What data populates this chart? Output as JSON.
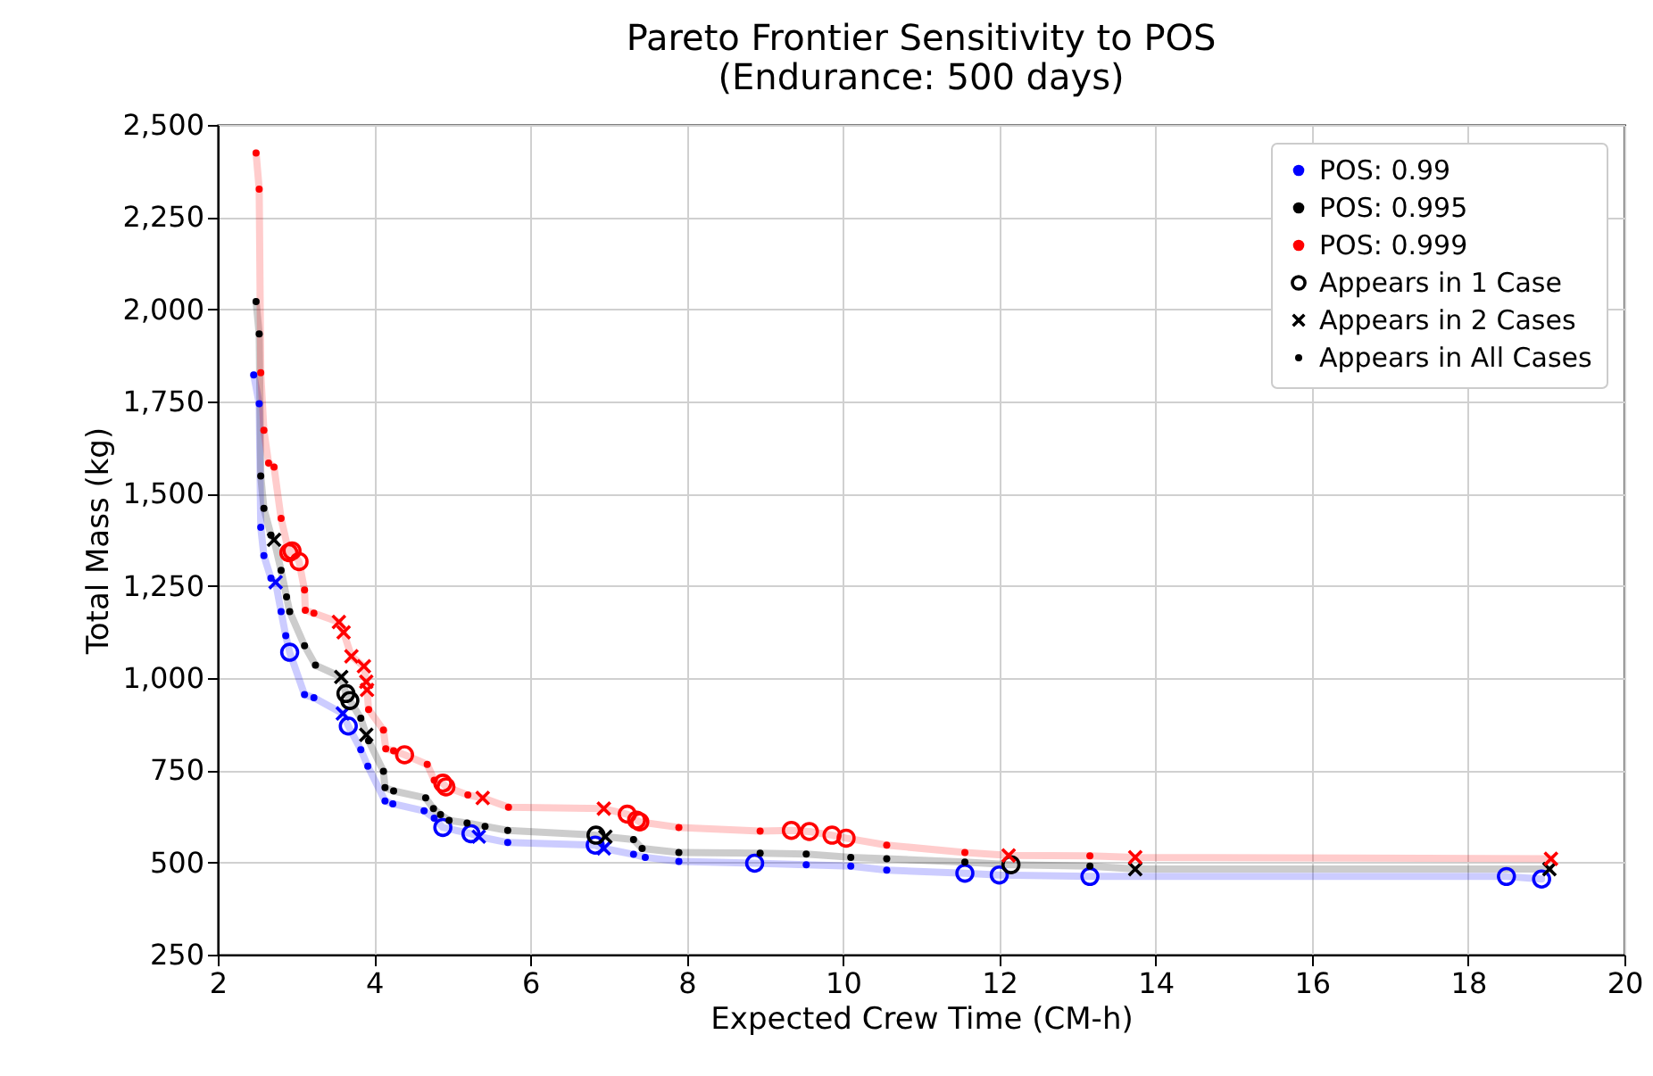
{
  "chart_data": {
    "type": "scatter",
    "title": "Pareto Frontier Sensitivity to POS",
    "subtitle": "(Endurance: 500 days)",
    "xlabel": "Expected Crew Time (CM-h)",
    "ylabel": "Total Mass (kg)",
    "xlim": [
      2,
      20
    ],
    "xticks": [
      2,
      4,
      6,
      8,
      10,
      12,
      14,
      16,
      18,
      20
    ],
    "ylim": [
      250,
      2500
    ],
    "yticks": [
      {
        "value": 250,
        "label": "250"
      },
      {
        "value": 500,
        "label": "500"
      },
      {
        "value": 750,
        "label": "750"
      },
      {
        "value": 1000,
        "label": "1,000"
      },
      {
        "value": 1250,
        "label": "1,250"
      },
      {
        "value": 1500,
        "label": "1,500"
      },
      {
        "value": 1750,
        "label": "1,750"
      },
      {
        "value": 2000,
        "label": "2,000"
      },
      {
        "value": 2250,
        "label": "2,250"
      },
      {
        "value": 2500,
        "label": "2,500"
      }
    ],
    "grid": true,
    "legend": "top right",
    "series": [
      {
        "name": "POS: 0.99",
        "type": "line",
        "color": "#0000ff",
        "x": [
          2.46,
          2.53,
          2.55,
          2.59,
          2.68,
          2.74,
          2.81,
          2.87,
          2.92,
          3.11,
          3.23,
          3.6,
          3.67,
          3.83,
          3.92,
          4.14,
          4.24,
          4.64,
          4.77,
          4.88,
          5.24,
          5.34,
          5.71,
          6.83,
          6.94,
          7.32,
          7.47,
          7.9,
          8.87,
          9.53,
          10.1,
          10.56,
          11.56,
          12.0,
          13.16,
          18.49,
          18.94
        ],
        "values": [
          1822,
          1744,
          1409,
          1332,
          1271,
          1260,
          1180,
          1115,
          1070,
          955,
          947,
          904,
          870,
          806,
          761,
          667,
          659,
          640,
          620,
          595,
          578,
          570,
          554,
          547,
          538,
          522,
          514,
          503,
          498,
          494,
          490,
          479,
          471,
          466,
          462,
          462,
          455
        ]
      },
      {
        "name": "POS: 0.995",
        "type": "line",
        "color": "#000000",
        "x": [
          2.49,
          2.53,
          2.55,
          2.59,
          2.68,
          2.72,
          2.81,
          2.88,
          2.92,
          3.11,
          3.25,
          3.58,
          3.64,
          3.69,
          3.83,
          3.9,
          3.93,
          4.12,
          4.14,
          4.25,
          4.66,
          4.76,
          4.85,
          4.96,
          5.19,
          5.42,
          5.71,
          6.84,
          6.96,
          7.32,
          7.43,
          7.9,
          8.94,
          9.53,
          10.1,
          10.56,
          11.56,
          12.15,
          13.16,
          13.74,
          19.04
        ],
        "values": [
          2021,
          1933,
          1548,
          1460,
          1388,
          1375,
          1292,
          1220,
          1180,
          1088,
          1035,
          1003,
          958,
          939,
          891,
          846,
          830,
          747,
          703,
          694,
          675,
          646,
          630,
          614,
          607,
          598,
          587,
          574,
          570,
          562,
          538,
          527,
          525,
          523,
          514,
          510,
          501,
          494,
          490,
          482,
          482
        ]
      },
      {
        "name": "POS: 0.999",
        "type": "line",
        "color": "#ff0000",
        "x": [
          2.49,
          2.53,
          2.55,
          2.59,
          2.65,
          2.72,
          2.81,
          2.91,
          2.95,
          3.04,
          3.11,
          3.12,
          3.23,
          3.55,
          3.61,
          3.71,
          3.87,
          3.9,
          3.91,
          3.93,
          4.12,
          4.15,
          4.25,
          4.39,
          4.68,
          4.77,
          4.88,
          4.92,
          5.2,
          5.39,
          5.72,
          6.94,
          7.24,
          7.36,
          7.4,
          7.9,
          8.94,
          9.34,
          9.57,
          9.86,
          10.04,
          10.56,
          11.56,
          12.12,
          13.16,
          13.74,
          19.06
        ],
        "values": [
          2424,
          2326,
          1828,
          1672,
          1583,
          1572,
          1433,
          1340,
          1345,
          1316,
          1239,
          1184,
          1176,
          1152,
          1124,
          1059,
          1032,
          990,
          968,
          915,
          859,
          808,
          803,
          792,
          766,
          723,
          715,
          705,
          683,
          675,
          650,
          646,
          631,
          615,
          610,
          595,
          585,
          587,
          584,
          574,
          566,
          547,
          527,
          519,
          518,
          514,
          510
        ]
      },
      {
        "type": "scatter",
        "color": "#0000ff",
        "marker": "point",
        "x": [
          2.46,
          2.53,
          2.55,
          2.59,
          2.68,
          2.81,
          2.87,
          3.11,
          3.23,
          3.83,
          3.92,
          4.14,
          4.24,
          4.64,
          4.77,
          5.71,
          7.32,
          7.47,
          7.9,
          9.53,
          10.1,
          10.56
        ],
        "values": [
          1822,
          1744,
          1409,
          1332,
          1271,
          1180,
          1115,
          955,
          947,
          806,
          761,
          667,
          659,
          640,
          620,
          554,
          522,
          514,
          503,
          494,
          490,
          479
        ]
      },
      {
        "type": "scatter",
        "color": "#0000ff",
        "marker": "circle",
        "x": [
          2.92,
          3.67,
          4.88,
          5.24,
          6.83,
          8.87,
          11.56,
          12.0,
          13.16,
          18.49,
          18.94
        ],
        "values": [
          1070,
          870,
          595,
          578,
          547,
          498,
          471,
          466,
          462,
          462,
          455
        ]
      },
      {
        "type": "scatter",
        "color": "#0000ff",
        "marker": "cross",
        "x": [
          2.74,
          3.6,
          5.34,
          6.94
        ],
        "values": [
          1260,
          904,
          570,
          538
        ]
      },
      {
        "name": "Appears in 1 Case",
        "type": "scatter",
        "color": "#000000",
        "marker": "circle",
        "x": [
          3.64,
          3.69,
          6.84,
          12.15
        ],
        "values": [
          958,
          939,
          574,
          494
        ]
      },
      {
        "name": "Appears in 2 Cases",
        "type": "scatter",
        "color": "#000000",
        "marker": "cross",
        "x": [
          2.72,
          3.58,
          3.9,
          6.96,
          13.74,
          19.04
        ],
        "values": [
          1375,
          1003,
          846,
          570,
          482,
          482
        ]
      },
      {
        "name": "Appears in All Cases",
        "type": "scatter",
        "color": "#000000",
        "marker": "point",
        "x": [
          2.49,
          2.53,
          2.55,
          2.59,
          2.68,
          2.81,
          2.88,
          2.92,
          3.11,
          3.25,
          3.83,
          3.93,
          4.12,
          4.14,
          4.25,
          4.66,
          4.76,
          4.85,
          4.96,
          5.19,
          5.42,
          5.71,
          7.32,
          7.43,
          7.9,
          8.94,
          9.53,
          10.1,
          10.56,
          11.56,
          13.16
        ],
        "values": [
          2021,
          1933,
          1548,
          1460,
          1388,
          1292,
          1220,
          1180,
          1088,
          1035,
          891,
          830,
          747,
          703,
          694,
          675,
          646,
          630,
          614,
          607,
          598,
          587,
          562,
          538,
          527,
          525,
          523,
          514,
          510,
          501,
          490
        ]
      },
      {
        "type": "scatter",
        "color": "#ff0000",
        "marker": "point",
        "x": [
          2.49,
          2.53,
          2.55,
          2.59,
          2.65,
          2.72,
          2.81,
          3.11,
          3.12,
          3.23,
          3.93,
          4.12,
          4.15,
          4.25,
          4.68,
          4.77,
          5.2,
          5.72,
          7.9,
          8.94,
          10.56,
          11.56,
          13.16
        ],
        "values": [
          2424,
          2326,
          1828,
          1672,
          1583,
          1572,
          1433,
          1239,
          1184,
          1176,
          915,
          859,
          808,
          803,
          766,
          723,
          683,
          650,
          595,
          585,
          547,
          527,
          518
        ]
      },
      {
        "type": "scatter",
        "color": "#ff0000",
        "marker": "circle",
        "x": [
          2.91,
          2.95,
          3.04,
          4.39,
          4.88,
          4.92,
          7.24,
          7.36,
          7.4,
          9.34,
          9.57,
          9.86,
          10.04
        ],
        "values": [
          1340,
          1345,
          1316,
          792,
          715,
          705,
          631,
          615,
          610,
          587,
          584,
          574,
          566
        ]
      },
      {
        "type": "scatter",
        "color": "#ff0000",
        "marker": "cross",
        "x": [
          3.55,
          3.61,
          3.71,
          3.87,
          3.9,
          3.91,
          5.39,
          6.94,
          12.12,
          13.74,
          19.06
        ],
        "values": [
          1152,
          1124,
          1059,
          1032,
          990,
          968,
          675,
          646,
          519,
          514,
          510
        ]
      }
    ]
  }
}
